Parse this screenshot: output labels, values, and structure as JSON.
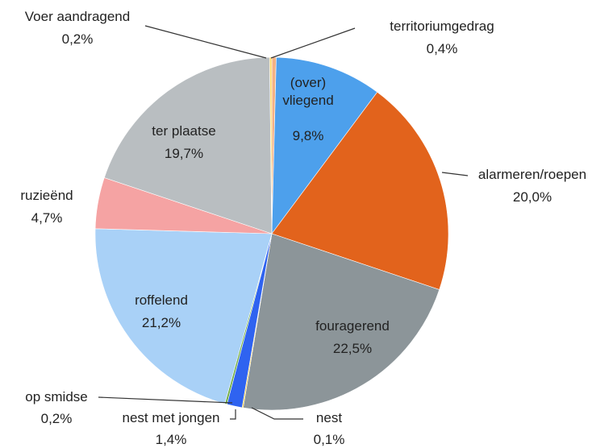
{
  "chart_data": {
    "type": "pie",
    "categories": [
      "territoriumgedrag",
      "(over) vliegend",
      "alarmeren/roepen",
      "fouragerend",
      "nest",
      "nest met jongen",
      "op smidse",
      "roffelend",
      "ruzieënd",
      "ter plaatse",
      "Voer aandragend"
    ],
    "values": [
      0.4,
      9.8,
      20.0,
      22.5,
      0.1,
      1.4,
      0.2,
      21.2,
      4.7,
      19.7,
      0.2
    ],
    "value_labels": [
      "0,4%",
      "9,8%",
      "20,0%",
      "22,5%",
      "0,1%",
      "1,4%",
      "0,2%",
      "21,2%",
      "4,7%",
      "19,7%",
      "0,2%"
    ],
    "colors": [
      "#f4b183",
      "#4da0ec",
      "#e2631c",
      "#8c9599",
      "#ffc000",
      "#2f63f0",
      "#70ad47",
      "#a9d1f7",
      "#f5a3a3",
      "#b9bec1",
      "#ffd966"
    ]
  }
}
